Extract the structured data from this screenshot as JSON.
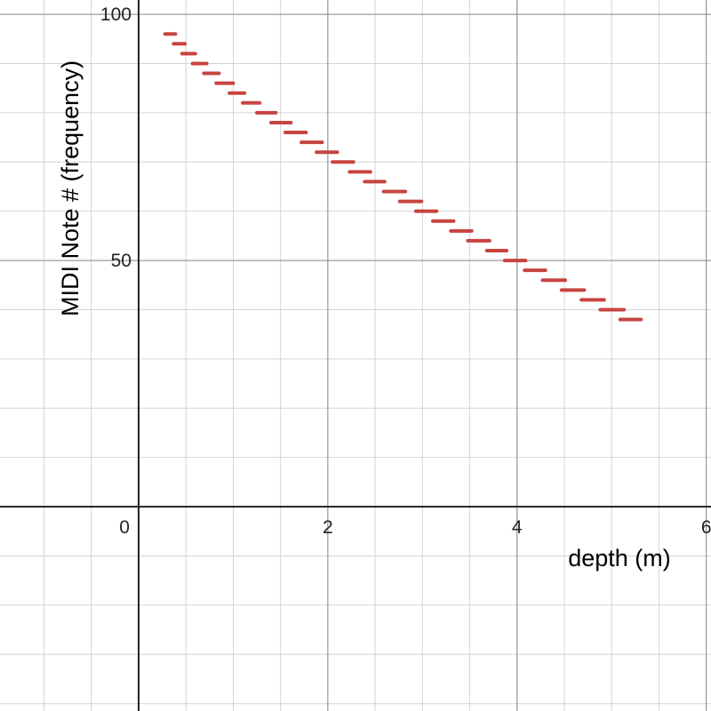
{
  "chart_data": {
    "type": "step-segments",
    "x_label": "depth (m)",
    "y_label": "MIDI Note # (frequency)",
    "color": "#c74440",
    "x_start": [
      0.28,
      0.37,
      0.46,
      0.57,
      0.69,
      0.82,
      0.96,
      1.1,
      1.25,
      1.4,
      1.55,
      1.72,
      1.88,
      2.05,
      2.23,
      2.39,
      2.59,
      2.76,
      2.93,
      3.11,
      3.3,
      3.48,
      3.68,
      3.87,
      4.08,
      4.27,
      4.47,
      4.68,
      4.88,
      5.09
    ],
    "x_end": [
      0.39,
      0.49,
      0.6,
      0.72,
      0.85,
      1.0,
      1.12,
      1.28,
      1.45,
      1.61,
      1.77,
      1.94,
      2.1,
      2.27,
      2.45,
      2.6,
      2.82,
      2.99,
      3.15,
      3.33,
      3.52,
      3.71,
      3.89,
      4.09,
      4.3,
      4.51,
      4.71,
      4.92,
      5.13,
      5.31
    ],
    "values": [
      96,
      94,
      92,
      90,
      88,
      86,
      84,
      82,
      80,
      78,
      76,
      74,
      72,
      70,
      68,
      66,
      64,
      62,
      60,
      58,
      56,
      54,
      52,
      50,
      48,
      46,
      44,
      42,
      40,
      38
    ],
    "xlim": [
      -1.465,
      6.05
    ],
    "ylim": [
      -41.5,
      102.9
    ],
    "xticks": [
      0,
      2,
      4,
      6
    ],
    "yticks": [
      50,
      100
    ],
    "grid": true
  }
}
